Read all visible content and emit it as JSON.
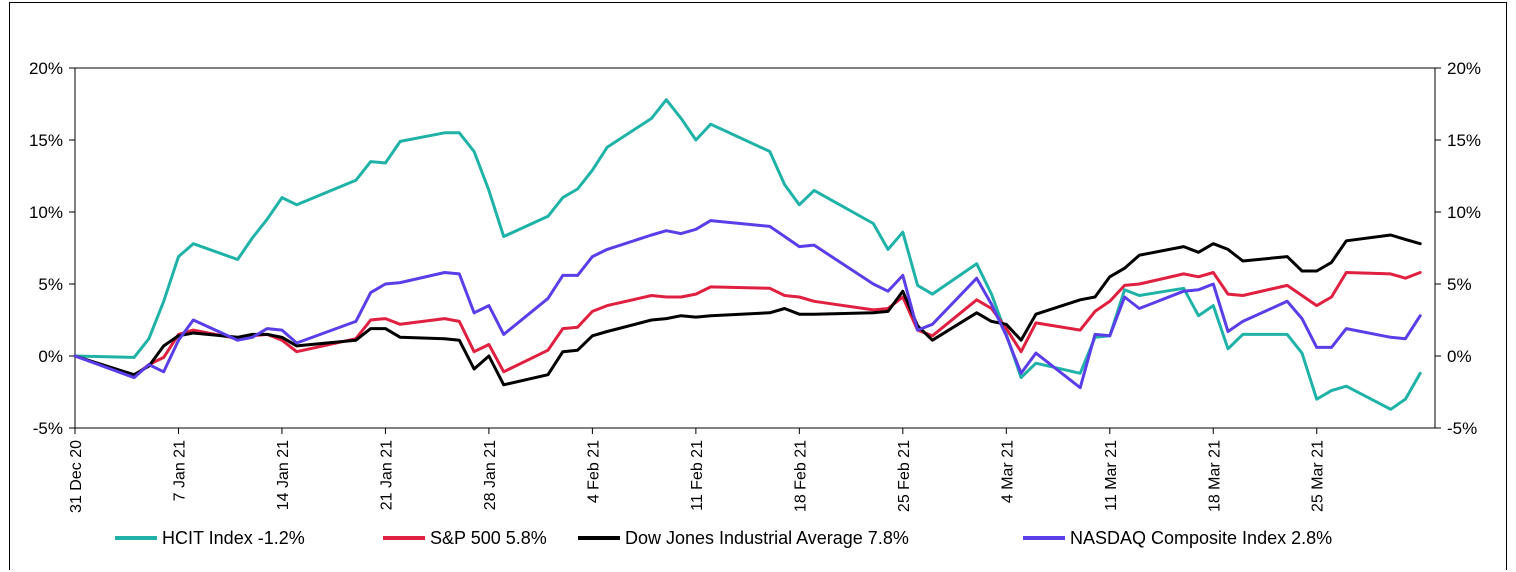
{
  "chart_data": {
    "type": "line",
    "y_ticks": [
      "20%",
      "15%",
      "10%",
      "5%",
      "0%",
      "-5%"
    ],
    "y_tick_values": [
      20,
      15,
      10,
      5,
      0,
      -5
    ],
    "ylim": [
      -5,
      20
    ],
    "xlim": [
      0,
      92
    ],
    "x_tick_labels": [
      "31 Dec 20",
      "7 Jan 21",
      "14 Jan 21",
      "21 Jan 21",
      "28 Jan 21",
      "4 Feb 21",
      "11 Feb 21",
      "18 Feb 21",
      "25 Feb 21",
      "4 Mar 21",
      "11 Mar 21",
      "18 Mar 21",
      "25 Mar 21"
    ],
    "x_tick_positions": [
      0,
      7,
      14,
      21,
      28,
      35,
      42,
      49,
      56,
      63,
      70,
      77,
      84
    ],
    "legend_position": "bottom",
    "grid": false,
    "series": [
      {
        "name": "HCIT Index -1.2%",
        "color": "#1fb3a8",
        "points": [
          [
            0,
            0
          ],
          [
            4,
            -0.1
          ],
          [
            5,
            1.2
          ],
          [
            6,
            3.8
          ],
          [
            7,
            6.9
          ],
          [
            8,
            7.8
          ],
          [
            11,
            6.7
          ],
          [
            12,
            8.2
          ],
          [
            13,
            9.5
          ],
          [
            14,
            11
          ],
          [
            15,
            10.5
          ],
          [
            19,
            12.2
          ],
          [
            20,
            13.5
          ],
          [
            21,
            13.4
          ],
          [
            22,
            14.9
          ],
          [
            25,
            15.5
          ],
          [
            26,
            15.5
          ],
          [
            27,
            14.2
          ],
          [
            28,
            11.5
          ],
          [
            29,
            8.3
          ],
          [
            32,
            9.7
          ],
          [
            33,
            11
          ],
          [
            34,
            11.6
          ],
          [
            35,
            12.9
          ],
          [
            36,
            14.5
          ],
          [
            39,
            16.5
          ],
          [
            40,
            17.8
          ],
          [
            41,
            16.5
          ],
          [
            42,
            15
          ],
          [
            43,
            16.1
          ],
          [
            47,
            14.2
          ],
          [
            48,
            11.9
          ],
          [
            49,
            10.5
          ],
          [
            50,
            11.5
          ],
          [
            54,
            9.2
          ],
          [
            55,
            7.4
          ],
          [
            56,
            8.6
          ],
          [
            57,
            4.9
          ],
          [
            58,
            4.3
          ],
          [
            61,
            6.4
          ],
          [
            62,
            4.3
          ],
          [
            63,
            1.5
          ],
          [
            64,
            -1.5
          ],
          [
            65,
            -0.5
          ],
          [
            68,
            -1.2
          ],
          [
            69,
            1.3
          ],
          [
            70,
            1.4
          ],
          [
            71,
            4.6
          ],
          [
            72,
            4.2
          ],
          [
            75,
            4.7
          ],
          [
            76,
            2.8
          ],
          [
            77,
            3.5
          ],
          [
            78,
            0.5
          ],
          [
            79,
            1.5
          ],
          [
            82,
            1.5
          ],
          [
            83,
            0.2
          ],
          [
            84,
            -3
          ],
          [
            85,
            -2.4
          ],
          [
            86,
            -2.1
          ],
          [
            89,
            -3.7
          ],
          [
            90,
            -3
          ],
          [
            91,
            -1.2
          ]
        ]
      },
      {
        "name": "S&P 500 5.8%",
        "color": "#e02040",
        "points": [
          [
            0,
            0
          ],
          [
            4,
            -1.4
          ],
          [
            5,
            -0.6
          ],
          [
            6,
            -0.1
          ],
          [
            7,
            1.5
          ],
          [
            8,
            1.8
          ],
          [
            11,
            1.2
          ],
          [
            12,
            1.4
          ],
          [
            13,
            1.5
          ],
          [
            14,
            1.1
          ],
          [
            15,
            0.3
          ],
          [
            19,
            1.2
          ],
          [
            20,
            2.5
          ],
          [
            21,
            2.6
          ],
          [
            22,
            2.2
          ],
          [
            25,
            2.6
          ],
          [
            26,
            2.4
          ],
          [
            27,
            0.3
          ],
          [
            28,
            0.8
          ],
          [
            29,
            -1.1
          ],
          [
            32,
            0.4
          ],
          [
            33,
            1.9
          ],
          [
            34,
            2
          ],
          [
            35,
            3.1
          ],
          [
            36,
            3.5
          ],
          [
            39,
            4.2
          ],
          [
            40,
            4.1
          ],
          [
            41,
            4.1
          ],
          [
            42,
            4.3
          ],
          [
            43,
            4.8
          ],
          [
            47,
            4.7
          ],
          [
            48,
            4.2
          ],
          [
            49,
            4.1
          ],
          [
            50,
            3.8
          ],
          [
            54,
            3.2
          ],
          [
            55,
            3.3
          ],
          [
            56,
            4.1
          ],
          [
            57,
            1.8
          ],
          [
            58,
            1.4
          ],
          [
            61,
            3.9
          ],
          [
            62,
            3.3
          ],
          [
            63,
            1.9
          ],
          [
            64,
            0.3
          ],
          [
            65,
            2.3
          ],
          [
            68,
            1.8
          ],
          [
            69,
            3.1
          ],
          [
            70,
            3.8
          ],
          [
            71,
            4.9
          ],
          [
            72,
            5
          ],
          [
            75,
            5.7
          ],
          [
            76,
            5.5
          ],
          [
            77,
            5.8
          ],
          [
            78,
            4.3
          ],
          [
            79,
            4.2
          ],
          [
            82,
            4.9
          ],
          [
            83,
            4.2
          ],
          [
            84,
            3.5
          ],
          [
            85,
            4.1
          ],
          [
            86,
            5.8
          ],
          [
            89,
            5.7
          ],
          [
            90,
            5.4
          ],
          [
            91,
            5.8
          ]
        ]
      },
      {
        "name": "Dow Jones Industrial Average 7.8%",
        "color": "#000000",
        "points": [
          [
            0,
            0
          ],
          [
            4,
            -1.3
          ],
          [
            5,
            -0.7
          ],
          [
            6,
            0.7
          ],
          [
            7,
            1.4
          ],
          [
            8,
            1.6
          ],
          [
            11,
            1.3
          ],
          [
            12,
            1.5
          ],
          [
            13,
            1.5
          ],
          [
            14,
            1.3
          ],
          [
            15,
            0.7
          ],
          [
            19,
            1.1
          ],
          [
            20,
            1.9
          ],
          [
            21,
            1.9
          ],
          [
            22,
            1.3
          ],
          [
            25,
            1.2
          ],
          [
            26,
            1.1
          ],
          [
            27,
            -0.9
          ],
          [
            28,
            0
          ],
          [
            29,
            -2
          ],
          [
            32,
            -1.3
          ],
          [
            33,
            0.3
          ],
          [
            34,
            0.4
          ],
          [
            35,
            1.4
          ],
          [
            36,
            1.7
          ],
          [
            39,
            2.5
          ],
          [
            40,
            2.6
          ],
          [
            41,
            2.8
          ],
          [
            42,
            2.7
          ],
          [
            43,
            2.8
          ],
          [
            47,
            3
          ],
          [
            48,
            3.3
          ],
          [
            49,
            2.9
          ],
          [
            50,
            2.9
          ],
          [
            54,
            3
          ],
          [
            55,
            3.1
          ],
          [
            56,
            4.5
          ],
          [
            57,
            2.1
          ],
          [
            58,
            1.1
          ],
          [
            61,
            3
          ],
          [
            62,
            2.4
          ],
          [
            63,
            2.2
          ],
          [
            64,
            1.1
          ],
          [
            65,
            2.9
          ],
          [
            68,
            3.9
          ],
          [
            69,
            4.1
          ],
          [
            70,
            5.5
          ],
          [
            71,
            6.1
          ],
          [
            72,
            7
          ],
          [
            75,
            7.6
          ],
          [
            76,
            7.2
          ],
          [
            77,
            7.8
          ],
          [
            78,
            7.4
          ],
          [
            79,
            6.6
          ],
          [
            82,
            6.9
          ],
          [
            83,
            5.9
          ],
          [
            84,
            5.9
          ],
          [
            85,
            6.5
          ],
          [
            86,
            8
          ],
          [
            89,
            8.4
          ],
          [
            90,
            8.1
          ],
          [
            91,
            7.8
          ]
        ]
      },
      {
        "name": "NASDAQ Composite Index 2.8%",
        "color": "#5a3ee8",
        "points": [
          [
            0,
            0
          ],
          [
            4,
            -1.5
          ],
          [
            5,
            -0.6
          ],
          [
            6,
            -1.1
          ],
          [
            7,
            1.1
          ],
          [
            8,
            2.5
          ],
          [
            11,
            1.1
          ],
          [
            12,
            1.3
          ],
          [
            13,
            1.9
          ],
          [
            14,
            1.8
          ],
          [
            15,
            0.9
          ],
          [
            19,
            2.4
          ],
          [
            20,
            4.4
          ],
          [
            21,
            5
          ],
          [
            22,
            5.1
          ],
          [
            25,
            5.8
          ],
          [
            26,
            5.7
          ],
          [
            27,
            3
          ],
          [
            28,
            3.5
          ],
          [
            29,
            1.5
          ],
          [
            32,
            4
          ],
          [
            33,
            5.6
          ],
          [
            34,
            5.6
          ],
          [
            35,
            6.9
          ],
          [
            36,
            7.4
          ],
          [
            39,
            8.4
          ],
          [
            40,
            8.7
          ],
          [
            41,
            8.5
          ],
          [
            42,
            8.8
          ],
          [
            43,
            9.4
          ],
          [
            47,
            9
          ],
          [
            48,
            8.3
          ],
          [
            49,
            7.6
          ],
          [
            50,
            7.7
          ],
          [
            54,
            5
          ],
          [
            55,
            4.5
          ],
          [
            56,
            5.6
          ],
          [
            57,
            1.8
          ],
          [
            58,
            2.2
          ],
          [
            61,
            5.4
          ],
          [
            62,
            3.6
          ],
          [
            63,
            1.4
          ],
          [
            64,
            -1.2
          ],
          [
            65,
            0.2
          ],
          [
            68,
            -2.2
          ],
          [
            69,
            1.5
          ],
          [
            70,
            1.4
          ],
          [
            71,
            4.1
          ],
          [
            72,
            3.3
          ],
          [
            75,
            4.5
          ],
          [
            76,
            4.6
          ],
          [
            77,
            5
          ],
          [
            78,
            1.7
          ],
          [
            79,
            2.4
          ],
          [
            82,
            3.8
          ],
          [
            83,
            2.6
          ],
          [
            84,
            0.6
          ],
          [
            85,
            0.6
          ],
          [
            86,
            1.9
          ],
          [
            89,
            1.3
          ],
          [
            90,
            1.2
          ],
          [
            91,
            2.8
          ]
        ]
      }
    ]
  }
}
